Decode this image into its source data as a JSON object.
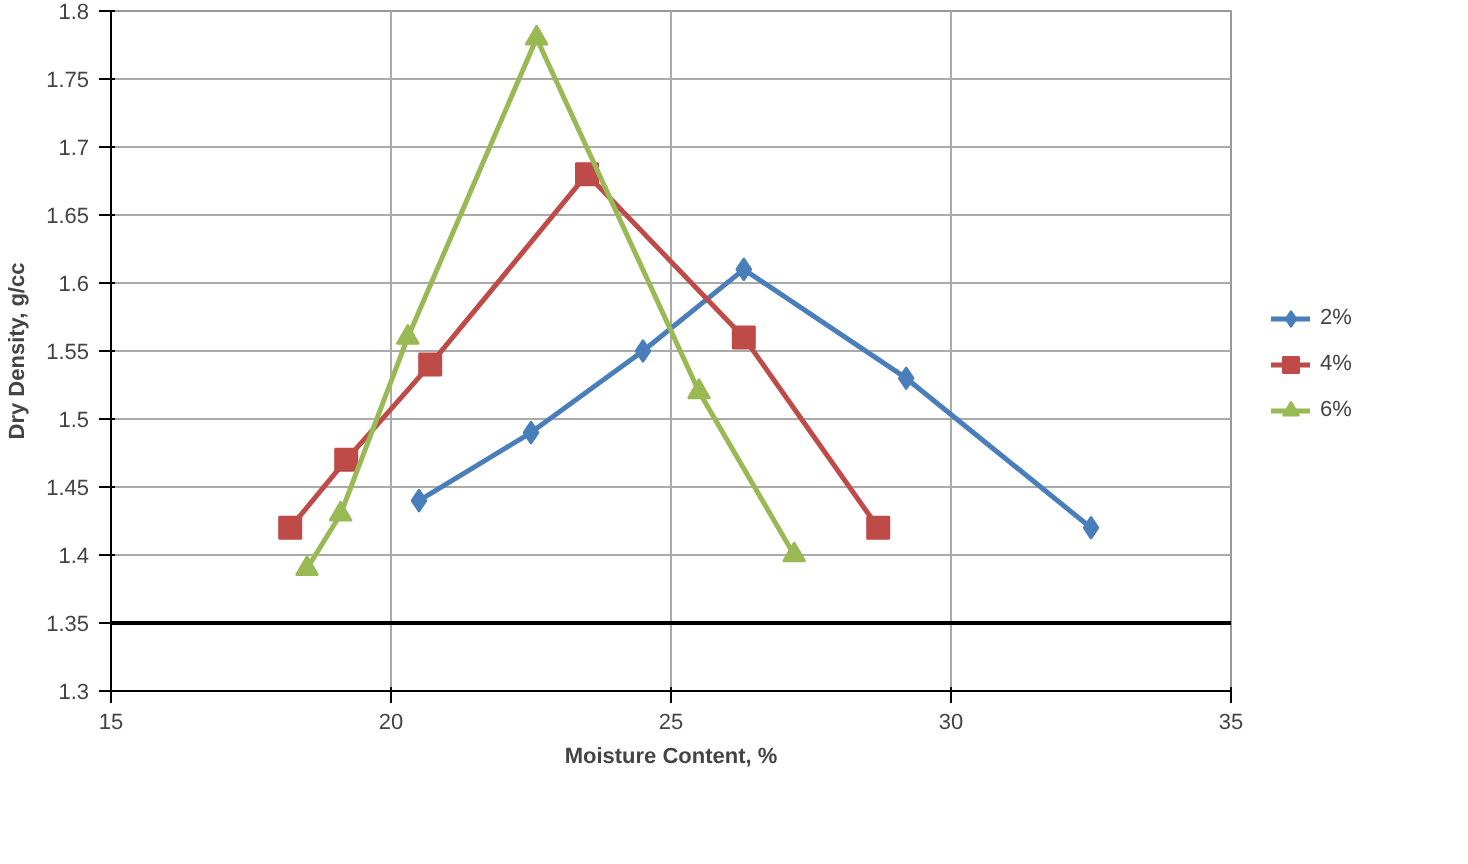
{
  "chart_data": {
    "type": "line",
    "xlabel": "Moisture Content, %",
    "ylabel": "Dry Density, g/cc",
    "xlim": [
      15,
      35
    ],
    "xticks": [
      15,
      20,
      25,
      30,
      35
    ],
    "ylim": [
      1.3,
      1.8
    ],
    "yticks": [
      1.3,
      1.35,
      1.4,
      1.45,
      1.5,
      1.55,
      1.6,
      1.65,
      1.7,
      1.75,
      1.8
    ],
    "grid": true,
    "legend": "right",
    "ref_lines": [
      {
        "axis": "y",
        "value": 1.35,
        "color": "#000000"
      }
    ],
    "series": [
      {
        "name": "2%",
        "color": "#4a7ebb",
        "marker": "diamond",
        "x": [
          20.5,
          22.5,
          24.5,
          26.3,
          29.2,
          32.5
        ],
        "values": [
          1.44,
          1.49,
          1.55,
          1.61,
          1.53,
          1.42
        ]
      },
      {
        "name": "4%",
        "color": "#be4b48",
        "marker": "square",
        "x": [
          18.2,
          19.2,
          20.7,
          23.5,
          26.3,
          28.7
        ],
        "values": [
          1.42,
          1.47,
          1.54,
          1.68,
          1.56,
          1.42
        ]
      },
      {
        "name": "6%",
        "color": "#98b954",
        "marker": "triangle",
        "x": [
          18.5,
          19.1,
          20.3,
          22.6,
          25.5,
          27.2
        ],
        "values": [
          1.39,
          1.43,
          1.56,
          1.78,
          1.52,
          1.4
        ]
      }
    ]
  }
}
